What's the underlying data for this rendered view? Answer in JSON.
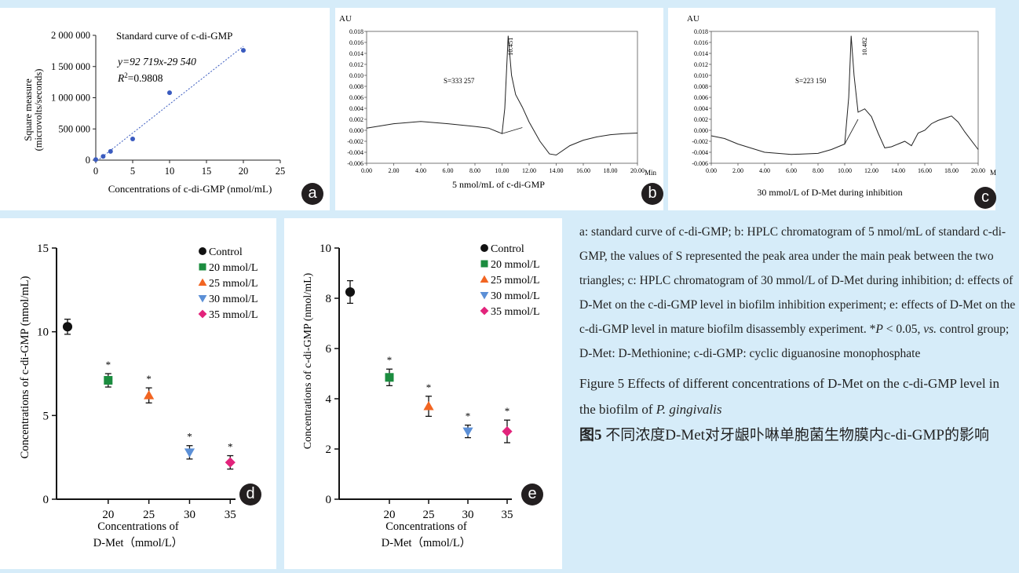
{
  "panels": {
    "a": {
      "badge": "a",
      "title": "Standard curve of c-di-GMP",
      "equation": "y=92 719x-29 540",
      "r2_label": "R",
      "r2_sup": "2",
      "r2_value": "=0.9808",
      "ylabel_line1": "Square measure",
      "ylabel_line2": "(microvolts/seconds)",
      "xlabel": "Concentrations of c-di-GMP (nmol/mL)",
      "y_ticks": [
        "2 000 000",
        "1 500 000",
        "1 000 000",
        "500 000",
        "0"
      ],
      "x_ticks": [
        "0",
        "5",
        "10",
        "15",
        "20",
        "25"
      ]
    },
    "b": {
      "badge": "b",
      "unit_label": "AU",
      "area_label": "S=333 257",
      "peak_label": "10.451",
      "caption": "5 nmol/mL of c-di-GMP",
      "min_label": "Min",
      "y_ticks": [
        "0.018",
        "0.016",
        "0.014",
        "0.012",
        "0.010",
        "0.008",
        "0.006",
        "0.004",
        "0.002",
        "0.000",
        "-0.002",
        "-0.004",
        "-0.006"
      ],
      "x_ticks": [
        "0.00",
        "2.00",
        "4.00",
        "6.00",
        "8.00",
        "10.00",
        "12.00",
        "14.00",
        "16.00",
        "18.00",
        "20.00"
      ]
    },
    "c": {
      "badge": "c",
      "unit_label": "AU",
      "area_label": "S=223 150",
      "peak_label": "10.482",
      "caption": "30 mmol/L of D-Met during inhibition",
      "min_label": "M",
      "y_ticks": [
        "0.018",
        "0.016",
        "0.014",
        "0.012",
        "0.010",
        "0.008",
        "0.006",
        "0.004",
        "0.002",
        "0.000",
        "-0.002",
        "-0.004",
        "-0.006"
      ],
      "x_ticks": [
        "0.00",
        "2.00",
        "4.00",
        "6.00",
        "8.00",
        "10.00",
        "12.00",
        "14.00",
        "16.00",
        "18.00",
        "20.00"
      ]
    },
    "d": {
      "badge": "d",
      "ylabel": "Concentrations of c-di-GMP (nmol/mL)",
      "xlabel_line1": "Concentrations of",
      "xlabel_line2": "D-Met（mmol/L）",
      "y_ticks": [
        "15",
        "10",
        "5",
        "0"
      ],
      "x_ticks": [
        "20",
        "25",
        "30",
        "35"
      ],
      "star": "*"
    },
    "e": {
      "badge": "e",
      "ylabel": "Concentrations of c-di-GMP (nmol/mL)",
      "xlabel_line1": "Concentrations of",
      "xlabel_line2": "D-Met（mmol/L）",
      "y_ticks": [
        "10",
        "8",
        "6",
        "4",
        "2",
        "0"
      ],
      "x_ticks": [
        "20",
        "25",
        "30",
        "35"
      ],
      "star": "*"
    }
  },
  "legend": [
    "Control",
    "20 mmol/L",
    "25 mmol/L",
    "30 mmol/L",
    "35 mmol/L"
  ],
  "colors": {
    "control": "#111111",
    "c20": "#1b8c3f",
    "c25": "#f26522",
    "c30": "#5b8fd6",
    "c35": "#e2237b",
    "fit": "#3a5bbf",
    "background": "#d6ecf9"
  },
  "caption": {
    "p1": "a: standard curve of c-di-GMP; b: HPLC chromatogram of 5 nmol/mL of standard c-di-GMP, the values of S represented the peak area under the main peak between the two triangles; c: HPLC chromatogram of 30 mmol/L of D-Met during inhibition; d: effects of D-Met on the c-di-GMP level in biofilm inhibition experiment; e: effects of D-Met on the c-di-GMP level in mature biofilm disassembly experiment. *",
    "p_italic": "P",
    "p2": " < 0.05, ",
    "vs": "vs.",
    "p3": " control group; D-Met: D-Methionine; c-di-GMP: cyclic diguanosine monophosphate",
    "fig_en_prefix": "Figure 5   Effects of different concentrations of D-Met on the c-di-GMP level in the biofilm of ",
    "fig_en_species": "P. gingivalis",
    "fig_cn_prefix": "图5",
    "fig_cn_text": "   不同浓度D-Met对牙龈卟啉单胞菌生物膜内c-di-GMP的影响"
  },
  "chart_data": [
    {
      "type": "scatter",
      "panel": "a",
      "title": "Standard curve of c-di-GMP",
      "xlabel": "Concentrations of c-di-GMP (nmol/mL)",
      "ylabel": "Square measure (microvolts/seconds)",
      "x": [
        0,
        1,
        2,
        5,
        10,
        20
      ],
      "y": [
        10000,
        60000,
        140000,
        340000,
        1080000,
        1760000
      ],
      "fit": {
        "slope": 92719,
        "intercept": -29540,
        "r2": 0.9808
      },
      "xlim": [
        0,
        25
      ],
      "ylim": [
        0,
        2000000
      ]
    },
    {
      "type": "line",
      "panel": "b",
      "xlabel": "Min",
      "ylabel": "AU",
      "xlim": [
        0,
        20
      ],
      "ylim": [
        -0.006,
        0.018
      ],
      "x": [
        0,
        2,
        4,
        6,
        8,
        9,
        10,
        10.2,
        10.45,
        10.7,
        11,
        11.5,
        12,
        12.8,
        13.5,
        14,
        15,
        16,
        17,
        18,
        19,
        20
      ],
      "y": [
        0.0004,
        0.0012,
        0.0016,
        0.0012,
        0.0007,
        0.0004,
        -0.0006,
        0.004,
        0.0172,
        0.01,
        0.0065,
        0.0042,
        0.0015,
        -0.002,
        -0.0043,
        -0.0045,
        -0.0028,
        -0.0018,
        -0.0012,
        -0.0008,
        -0.0006,
        -0.0005
      ]
    },
    {
      "type": "line",
      "panel": "c",
      "xlabel": "Min",
      "ylabel": "AU",
      "xlim": [
        0,
        20
      ],
      "ylim": [
        -0.006,
        0.018
      ],
      "x": [
        0,
        1,
        2,
        4,
        6,
        8,
        9,
        10,
        10.3,
        10.48,
        10.7,
        11,
        11.5,
        12,
        12.5,
        13,
        13.5,
        14,
        14.5,
        15,
        15.5,
        16,
        16.5,
        17,
        17.5,
        18,
        18.5,
        19,
        20
      ],
      "y": [
        -0.001,
        -0.0015,
        -0.0025,
        -0.004,
        -0.0044,
        -0.0042,
        -0.0035,
        -0.0025,
        0.006,
        0.0172,
        0.01,
        0.0033,
        0.0039,
        0.0025,
        -0.0005,
        -0.0032,
        -0.003,
        -0.0025,
        -0.002,
        -0.0028,
        -0.0005,
        0.0,
        0.0012,
        0.0018,
        0.0022,
        0.0026,
        0.0015,
        -0.0003,
        -0.0035
      ]
    },
    {
      "type": "scatter",
      "panel": "d",
      "ylabel": "Concentrations of c-di-GMP (nmol/mL)",
      "xlabel": "Concentrations of D-Met（mmol/L）",
      "ylim": [
        0,
        15
      ],
      "series": [
        {
          "name": "Control",
          "x": 15,
          "value": 10.3,
          "error": 0.45
        },
        {
          "name": "20 mmol/L",
          "x": 20,
          "value": 7.1,
          "error": 0.4,
          "significant": true
        },
        {
          "name": "25 mmol/L",
          "x": 25,
          "value": 6.2,
          "error": 0.45,
          "significant": true
        },
        {
          "name": "30 mmol/L",
          "x": 30,
          "value": 2.8,
          "error": 0.4,
          "significant": true
        },
        {
          "name": "35 mmol/L",
          "x": 35,
          "value": 2.2,
          "error": 0.4,
          "significant": true
        }
      ]
    },
    {
      "type": "scatter",
      "panel": "e",
      "ylabel": "Concentrations of c-di-GMP (nmol/mL)",
      "xlabel": "Concentrations of D-Met（mmol/L）",
      "ylim": [
        0,
        10
      ],
      "series": [
        {
          "name": "Control",
          "x": 15,
          "value": 8.25,
          "error": 0.45
        },
        {
          "name": "20 mmol/L",
          "x": 20,
          "value": 4.85,
          "error": 0.33,
          "significant": true
        },
        {
          "name": "25 mmol/L",
          "x": 25,
          "value": 3.7,
          "error": 0.4,
          "significant": true
        },
        {
          "name": "30 mmol/L",
          "x": 30,
          "value": 2.7,
          "error": 0.25,
          "significant": true
        },
        {
          "name": "35 mmol/L",
          "x": 35,
          "value": 2.7,
          "error": 0.45,
          "significant": true
        }
      ]
    }
  ]
}
